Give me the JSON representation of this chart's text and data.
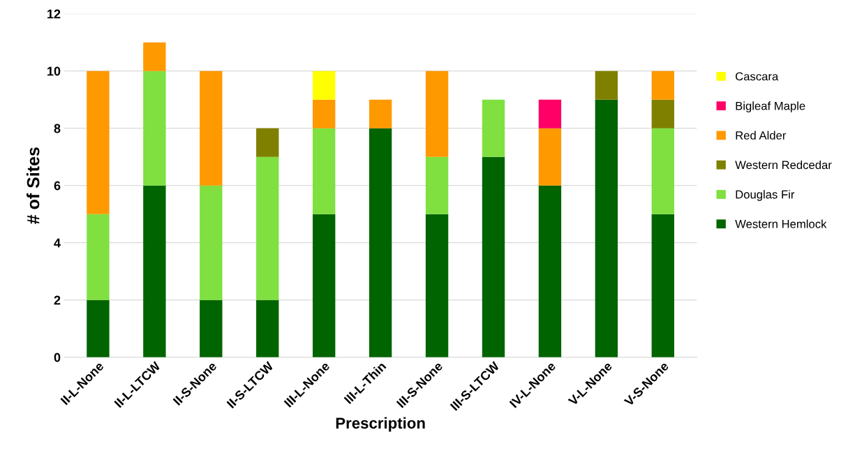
{
  "chart_data": {
    "type": "bar",
    "stacked": true,
    "xlabel": "Prescription",
    "ylabel": "# of Sites",
    "categories": [
      "II-L-None",
      "II-L-LTCW",
      "II-S-None",
      "II-S-LTCW",
      "III-L-None",
      "III-L-Thin",
      "III-S-None",
      "III-S-LTCW",
      "IV-L-None",
      "V-L-None",
      "V-S-None"
    ],
    "series": [
      {
        "name": "Western Hemlock",
        "color": "#006400",
        "values": [
          2,
          6,
          2,
          2,
          5,
          8,
          5,
          7,
          6,
          9,
          5
        ]
      },
      {
        "name": "Douglas Fir",
        "color": "#7fe040",
        "values": [
          3,
          4,
          4,
          5,
          3,
          0,
          2,
          2,
          0,
          0,
          3
        ]
      },
      {
        "name": "Western Redcedar",
        "color": "#808000",
        "values": [
          0,
          0,
          0,
          1,
          0,
          0,
          0,
          0,
          0,
          1,
          1
        ]
      },
      {
        "name": "Red Alder",
        "color": "#ff9900",
        "values": [
          5,
          1,
          4,
          0,
          1,
          1,
          3,
          0,
          2,
          0,
          1
        ]
      },
      {
        "name": "Bigleaf Maple",
        "color": "#ff0066",
        "values": [
          0,
          0,
          0,
          0,
          0,
          0,
          0,
          0,
          1,
          0,
          0
        ]
      },
      {
        "name": "Cascara",
        "color": "#ffff00",
        "values": [
          0,
          0,
          0,
          0,
          1,
          0,
          0,
          0,
          0,
          0,
          0
        ]
      }
    ],
    "ylim": [
      0,
      12
    ],
    "yticks": [
      0,
      2,
      4,
      6,
      8,
      10,
      12
    ],
    "grid": "y",
    "legend": "right"
  }
}
